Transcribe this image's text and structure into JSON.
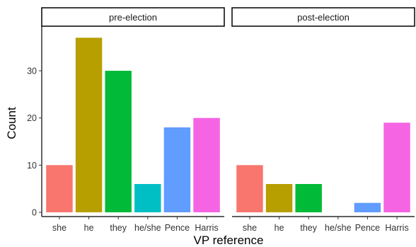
{
  "chart_data": {
    "type": "bar",
    "xlabel": "VP reference",
    "ylabel": "Count",
    "ylim": [
      0,
      39
    ],
    "yticks": [
      0,
      10,
      20,
      30
    ],
    "categories": [
      "she",
      "he",
      "they",
      "he/she",
      "Pence",
      "Harris"
    ],
    "colors": [
      "#F8766D",
      "#B79F00",
      "#00BA38",
      "#00BFC4",
      "#619CFF",
      "#F564E3"
    ],
    "panels": [
      {
        "name": "pre-election",
        "values": [
          10,
          37,
          30,
          6,
          18,
          20
        ]
      },
      {
        "name": "post-election",
        "values": [
          10,
          6,
          6,
          0,
          2,
          19
        ]
      }
    ],
    "grid": false,
    "legend": "none"
  }
}
